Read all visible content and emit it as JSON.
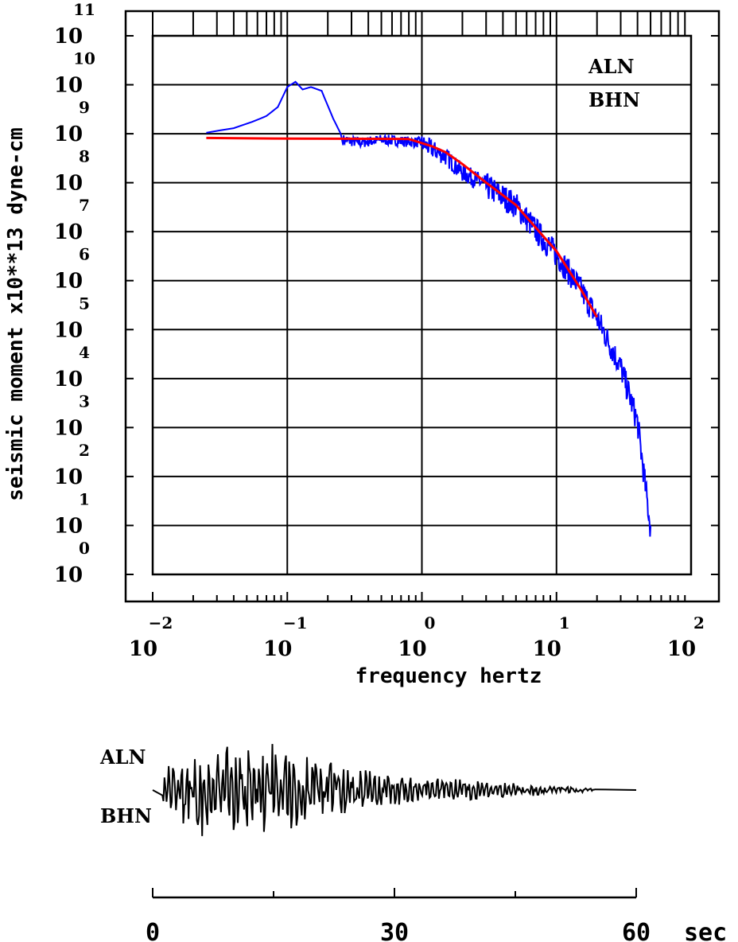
{
  "chart_data": [
    {
      "type": "line",
      "ylabel": "seismic moment x10**13 dyne-cm",
      "xlabel": "frequency  hertz",
      "x_scale": "log",
      "y_scale": "log",
      "xlim": [
        0.01,
        100
      ],
      "ylim": [
        1,
        100000000000
      ],
      "x_tick_base": "10",
      "x_tick_exponents": [
        "−2",
        "−1",
        "0",
        "1",
        "2"
      ],
      "y_tick_base": "10",
      "y_tick_exponents": [
        "0",
        "1",
        "2",
        "3",
        "4",
        "5",
        "6",
        "7",
        "8",
        "9",
        "10",
        "11"
      ],
      "grid": true,
      "annotations": [
        "ALN",
        "BHN"
      ],
      "colors": {
        "observed": "#0000ff",
        "model": "#ff0000"
      },
      "series": [
        {
          "role": "observed spectrum",
          "color": "#0000ff",
          "points": [
            [
              0.025,
              1050000000
            ],
            [
              0.04,
              1300000000
            ],
            [
              0.055,
              1750000000
            ],
            [
              0.07,
              2300000000
            ],
            [
              0.085,
              3500000000
            ],
            [
              0.1,
              9000000000
            ],
            [
              0.115,
              11500000000
            ],
            [
              0.13,
              8000000000
            ],
            [
              0.15,
              9000000000
            ],
            [
              0.18,
              7500000000
            ],
            [
              0.22,
              2000000000
            ],
            [
              0.26,
              800000000
            ],
            [
              0.35,
              700000000
            ],
            [
              0.5,
              800000000
            ],
            [
              0.7,
              750000000
            ],
            [
              1.0,
              700000000
            ],
            [
              1.5,
              380000000
            ],
            [
              2.0,
              180000000
            ],
            [
              3.0,
              100000000
            ],
            [
              5.0,
              40000000
            ],
            [
              8.0,
              8000000
            ],
            [
              10.0,
              4000000
            ],
            [
              15.0,
              800000
            ],
            [
              20.0,
              200000
            ],
            [
              30.0,
              20000
            ],
            [
              40.0,
              1500
            ],
            [
              50.0,
              10
            ]
          ]
        },
        {
          "role": "model fit",
          "color": "#ff0000",
          "points": [
            [
              0.025,
              820000000
            ],
            [
              0.08,
              800000000
            ],
            [
              0.3,
              790000000
            ],
            [
              0.8,
              780000000
            ],
            [
              1.2,
              550000000
            ],
            [
              1.5,
              420000000
            ],
            [
              2.0,
              240000000
            ],
            [
              3.0,
              100000000
            ],
            [
              5.0,
              35000000
            ],
            [
              8.0,
              8000000
            ],
            [
              10.0,
              4000000
            ],
            [
              15.0,
              700000
            ],
            [
              20.0,
              180000
            ]
          ]
        }
      ]
    },
    {
      "type": "line",
      "xlim": [
        0,
        60
      ],
      "x_tick_labels": [
        "0",
        "30",
        "60"
      ],
      "x_unit": "sec",
      "annotations": [
        "ALN",
        "BHN"
      ],
      "color": "#000000"
    }
  ]
}
